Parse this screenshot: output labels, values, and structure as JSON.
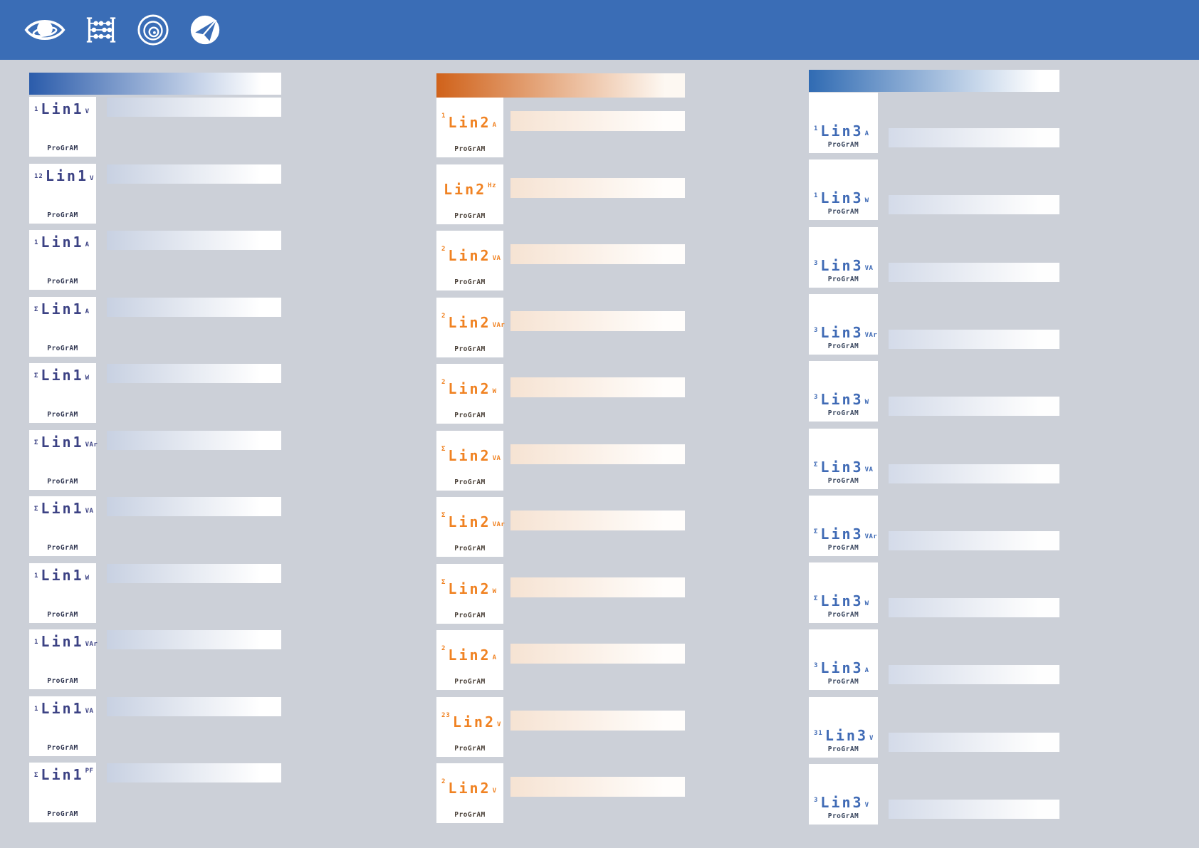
{
  "page": {
    "background": "#ccd0d8"
  },
  "topbar": {
    "background": "#3a6db6",
    "icons": [
      {
        "name": "eye-orbit-icon"
      },
      {
        "name": "abacus-icon"
      },
      {
        "name": "lens-circles-icon"
      },
      {
        "name": "send-plane-icon"
      }
    ]
  },
  "columns": [
    {
      "id": "line1",
      "accent": "#2b5cab",
      "lcd_color": "#3c4284",
      "program_color": "#2f3550",
      "header_gradient": [
        "#2b5cab",
        "#ffffff"
      ],
      "bar_gradient": [
        "#c8d1e2",
        "#ffffff"
      ],
      "program_label": "ProGrAM",
      "panels": [
        {
          "prefix": "1",
          "label": "Lin1",
          "unit": "V"
        },
        {
          "prefix": "12",
          "label": "Lin1",
          "unit": "V"
        },
        {
          "prefix": "1",
          "label": "Lin1",
          "unit": "A"
        },
        {
          "prefix": "Σ",
          "label": "Lin1",
          "unit": "A"
        },
        {
          "prefix": "Σ",
          "label": "Lin1",
          "unit": "W"
        },
        {
          "prefix": "Σ",
          "label": "Lin1",
          "unit": "VAr"
        },
        {
          "prefix": "Σ",
          "label": "Lin1",
          "unit": "VA"
        },
        {
          "prefix": "1",
          "label": "Lin1",
          "unit": "W"
        },
        {
          "prefix": "1",
          "label": "Lin1",
          "unit": "VAr"
        },
        {
          "prefix": "1",
          "label": "Lin1",
          "unit": "VA"
        },
        {
          "prefix": "Σ",
          "label": "Lin1",
          "unit": "PF",
          "unit_raised": true
        }
      ]
    },
    {
      "id": "line2",
      "accent": "#d0621a",
      "lcd_color": "#f08222",
      "program_color": "#4a4038",
      "header_gradient": [
        "#d0621a",
        "#fdf8f2"
      ],
      "bar_gradient": [
        "#f6e3d3",
        "#fffdfb"
      ],
      "program_label": "ProGrAM",
      "panels": [
        {
          "prefix": "1",
          "label": "Lin2",
          "unit": "A"
        },
        {
          "prefix": "",
          "label": "Lin2",
          "unit": "Hz",
          "unit_raised": true
        },
        {
          "prefix": "2",
          "label": "Lin2",
          "unit": "VA"
        },
        {
          "prefix": "2",
          "label": "Lin2",
          "unit": "VAr"
        },
        {
          "prefix": "2",
          "label": "Lin2",
          "unit": "W"
        },
        {
          "prefix": "Σ",
          "label": "Lin2",
          "unit": "VA"
        },
        {
          "prefix": "Σ",
          "label": "Lin2",
          "unit": "VAr"
        },
        {
          "prefix": "Σ",
          "label": "Lin2",
          "unit": "W"
        },
        {
          "prefix": "2",
          "label": "Lin2",
          "unit": "A"
        },
        {
          "prefix": "23",
          "label": "Lin2",
          "unit": "V"
        },
        {
          "prefix": "2",
          "label": "Lin2",
          "unit": "V"
        }
      ]
    },
    {
      "id": "line3",
      "accent": "#306bb3",
      "lcd_color": "#3f6ab5",
      "program_color": "#39465e",
      "header_gradient": [
        "#306bb3",
        "#ffffff"
      ],
      "bar_gradient": [
        "#d4dbe9",
        "#fefefe"
      ],
      "program_label": "ProGrAM",
      "panels": [
        {
          "prefix": "1",
          "label": "Lin3",
          "unit": "A"
        },
        {
          "prefix": "1",
          "label": "Lin3",
          "unit": "W"
        },
        {
          "prefix": "3",
          "label": "Lin3",
          "unit": "VA"
        },
        {
          "prefix": "3",
          "label": "Lin3",
          "unit": "VAr"
        },
        {
          "prefix": "3",
          "label": "Lin3",
          "unit": "W"
        },
        {
          "prefix": "Σ",
          "label": "Lin3",
          "unit": "VA"
        },
        {
          "prefix": "Σ",
          "label": "Lin3",
          "unit": "VAr"
        },
        {
          "prefix": "Σ",
          "label": "Lin3",
          "unit": "W"
        },
        {
          "prefix": "3",
          "label": "Lin3",
          "unit": "A"
        },
        {
          "prefix": "31",
          "label": "Lin3",
          "unit": "V"
        },
        {
          "prefix": "3",
          "label": "Lin3",
          "unit": "V"
        }
      ]
    }
  ]
}
